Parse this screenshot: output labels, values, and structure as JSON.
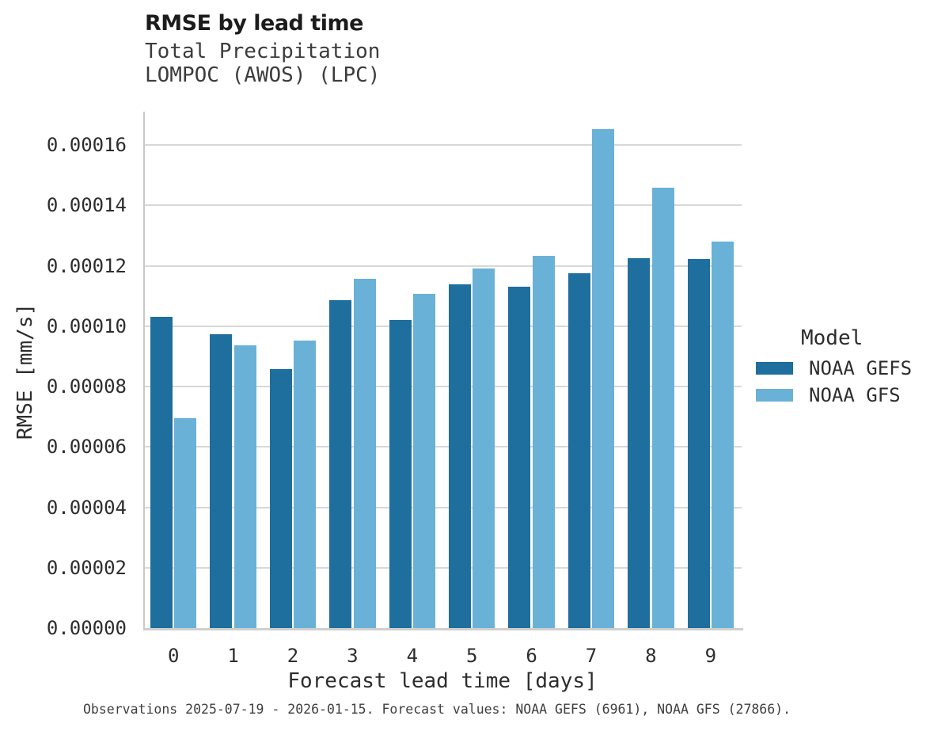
{
  "header": {
    "title": "RMSE by lead time",
    "subtitle_line1": "Total Precipitation",
    "subtitle_line2": "LOMPOC (AWOS) (LPC)"
  },
  "axes": {
    "x_label": "Forecast lead time [days]",
    "y_label": "RMSE [mm/s]"
  },
  "legend": {
    "title": "Model",
    "entries": [
      {
        "label": "NOAA GEFS",
        "color": "#1e6e9e"
      },
      {
        "label": "NOAA GFS",
        "color": "#6ab1d8"
      }
    ]
  },
  "caption": "Observations 2025-07-19 - 2026-01-15. Forecast values: NOAA GEFS (6961), NOAA GFS (27866).",
  "colors": {
    "gefs_bar": "#1e6e9e",
    "gfs_bar": "#6ab1d8",
    "gridline": "#d8d8d8",
    "axis_spine": "#cfcfcf",
    "text": "#2d2d2d"
  },
  "chart_data": {
    "type": "bar",
    "title": "RMSE by lead time",
    "subtitle": [
      "Total Precipitation",
      "LOMPOC (AWOS) (LPC)"
    ],
    "xlabel": "Forecast lead time [days]",
    "ylabel": "RMSE [mm/s]",
    "categories": [
      "0",
      "1",
      "2",
      "3",
      "4",
      "5",
      "6",
      "7",
      "8",
      "9"
    ],
    "series": [
      {
        "name": "NOAA GEFS",
        "color": "#1e6e9e",
        "values": [
          0.000103,
          9.73e-05,
          8.58e-05,
          0.0001085,
          0.000102,
          0.0001139,
          0.0001131,
          0.0001175,
          0.0001226,
          0.0001221
        ]
      },
      {
        "name": "NOAA GFS",
        "color": "#6ab1d8",
        "values": [
          6.96e-05,
          9.37e-05,
          9.53e-05,
          0.0001158,
          0.0001107,
          0.000119,
          0.0001232,
          0.0001652,
          0.0001458,
          0.000128
        ]
      }
    ],
    "ylim": [
      0,
      0.000171
    ],
    "yticks": [
      0,
      2e-05,
      4e-05,
      6e-05,
      8e-05,
      0.0001,
      0.00012,
      0.00014,
      0.00016
    ],
    "ytick_labels": [
      "0.00000",
      "0.00002",
      "0.00004",
      "0.00006",
      "0.00008",
      "0.00010",
      "0.00012",
      "0.00014",
      "0.00016"
    ],
    "grid": "horizontal",
    "legend_position": "right",
    "legend_title": "Model"
  }
}
